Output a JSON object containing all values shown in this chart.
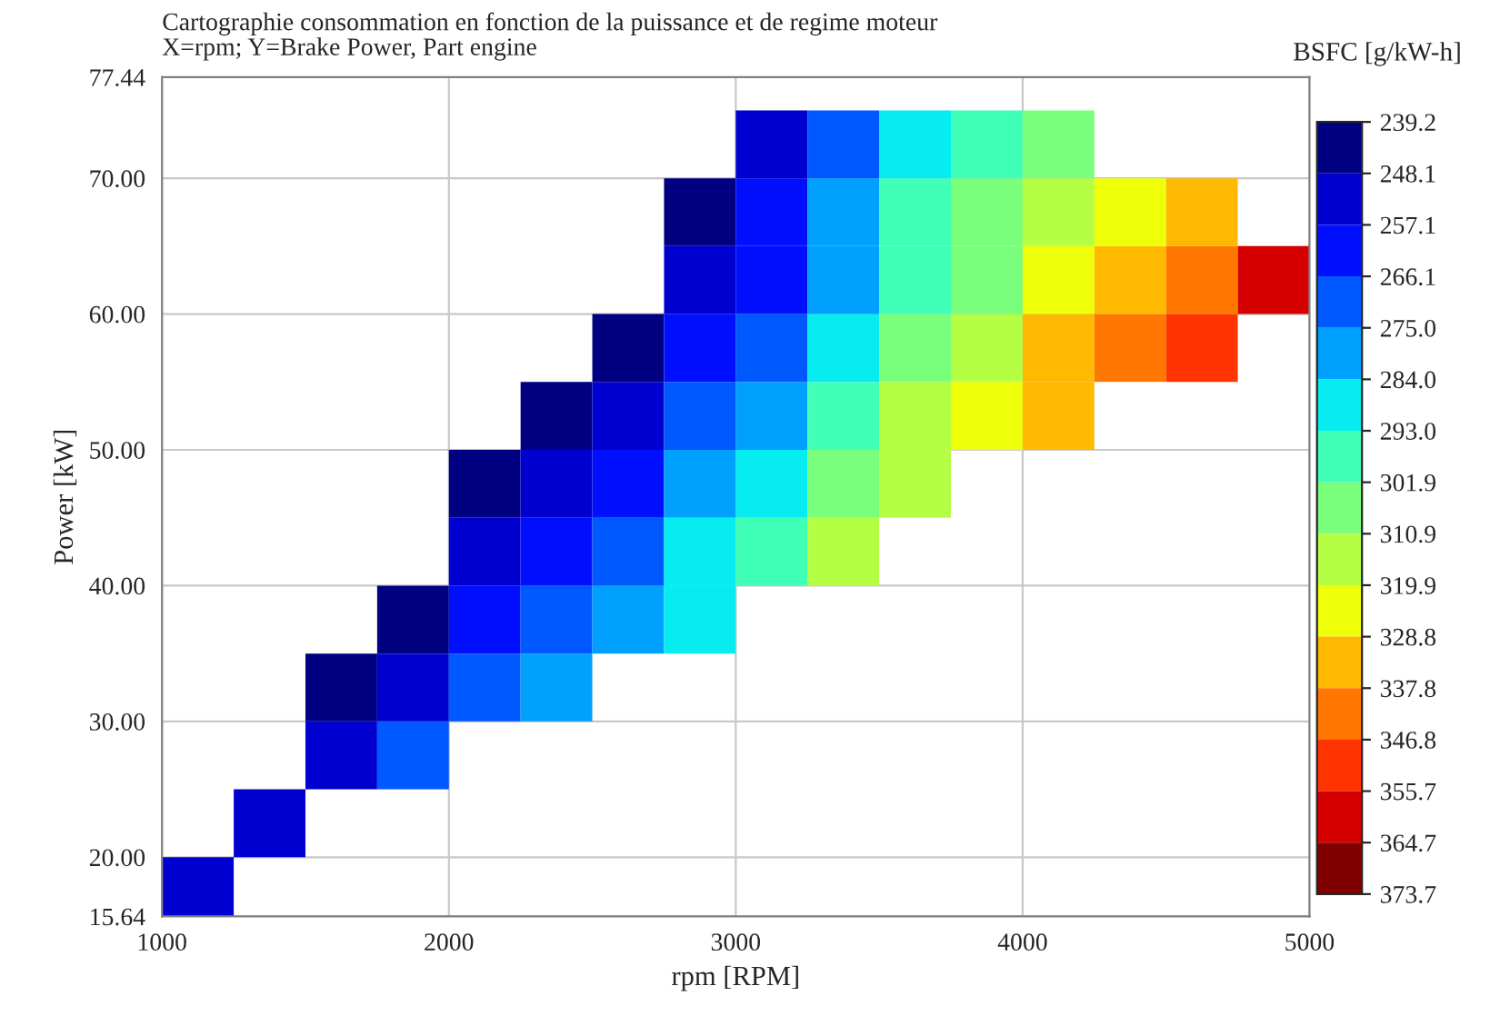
{
  "chart_data": {
    "type": "heatmap",
    "title": "Cartographie consommation en fonction de la puissance et de regime moteur",
    "subtitle": "X=rpm; Y=Brake Power, Part engine",
    "xlabel": "rpm [RPM]",
    "ylabel": "Power [kW]",
    "clabel": "BSFC [g/kW-h]",
    "x": [
      1125,
      1375,
      1625,
      1875,
      2125,
      2375,
      2625,
      2875,
      3125,
      3375,
      3625,
      3875,
      4125,
      4375,
      4625,
      4875
    ],
    "y": [
      17.5,
      22.5,
      27.5,
      32.5,
      37.5,
      42.5,
      47.5,
      52.5,
      57.5,
      62.5,
      67.5,
      72.5
    ],
    "cells": [
      [
        257,
        null,
        null,
        null,
        null,
        null,
        null,
        null,
        null,
        null,
        null,
        null,
        null,
        null,
        null,
        null
      ],
      [
        null,
        256,
        null,
        null,
        null,
        null,
        null,
        null,
        null,
        null,
        null,
        null,
        null,
        null,
        null,
        null
      ],
      [
        null,
        null,
        255,
        268,
        null,
        null,
        null,
        null,
        null,
        null,
        null,
        null,
        null,
        null,
        null,
        null
      ],
      [
        null,
        null,
        242,
        257,
        269,
        280,
        null,
        null,
        null,
        null,
        null,
        null,
        null,
        null,
        null,
        null
      ],
      [
        null,
        null,
        null,
        247,
        260,
        271,
        282,
        292,
        null,
        null,
        null,
        null,
        null,
        null,
        null,
        null
      ],
      [
        null,
        null,
        null,
        null,
        250,
        262,
        273,
        284,
        297,
        312,
        null,
        null,
        null,
        null,
        null,
        null
      ],
      [
        null,
        null,
        null,
        null,
        240,
        253,
        264,
        276,
        290,
        305,
        319,
        null,
        null,
        null,
        null,
        null
      ],
      [
        null,
        null,
        null,
        null,
        null,
        244,
        256,
        267,
        282,
        297,
        312,
        324,
        336,
        null,
        null,
        null
      ],
      [
        null,
        null,
        null,
        null,
        null,
        null,
        247,
        259,
        274,
        290,
        306,
        317,
        329,
        341,
        354,
        null
      ],
      [
        null,
        null,
        null,
        null,
        null,
        null,
        null,
        251,
        266,
        283,
        299,
        310,
        321,
        332,
        346,
        361
      ],
      [
        null,
        null,
        null,
        null,
        null,
        null,
        null,
        242,
        259,
        275,
        293,
        304,
        314,
        324,
        337,
        null
      ],
      [
        null,
        null,
        null,
        null,
        null,
        null,
        null,
        null,
        251,
        268,
        286,
        297,
        306,
        null,
        null,
        null
      ]
    ],
    "clim": [
      239.2,
      373.7
    ],
    "cticks": [
      239.2,
      248.1,
      257.1,
      266.1,
      {
        "value": 275,
        "label": "275.0"
      },
      {
        "value": 284,
        "label": "284.0"
      },
      {
        "value": 293,
        "label": "293.0"
      },
      301.9,
      310.9,
      319.9,
      328.8,
      337.8,
      346.8,
      355.7,
      364.7,
      373.7
    ],
    "xlim": [
      1000,
      5000
    ],
    "xticks": [
      1000,
      2000,
      3000,
      4000,
      5000
    ],
    "ylim": [
      15.64,
      77.44
    ],
    "yticks": [
      {
        "value": 15.64,
        "label": "15.64"
      },
      {
        "value": 20,
        "label": "20.00"
      },
      {
        "value": 30,
        "label": "30.00"
      },
      {
        "value": 40,
        "label": "40.00"
      },
      {
        "value": 50,
        "label": "50.00"
      },
      {
        "value": 60,
        "label": "60.00"
      },
      {
        "value": 70,
        "label": "70.00"
      },
      {
        "value": 77.44,
        "label": "77.44"
      }
    ],
    "grid": true
  }
}
